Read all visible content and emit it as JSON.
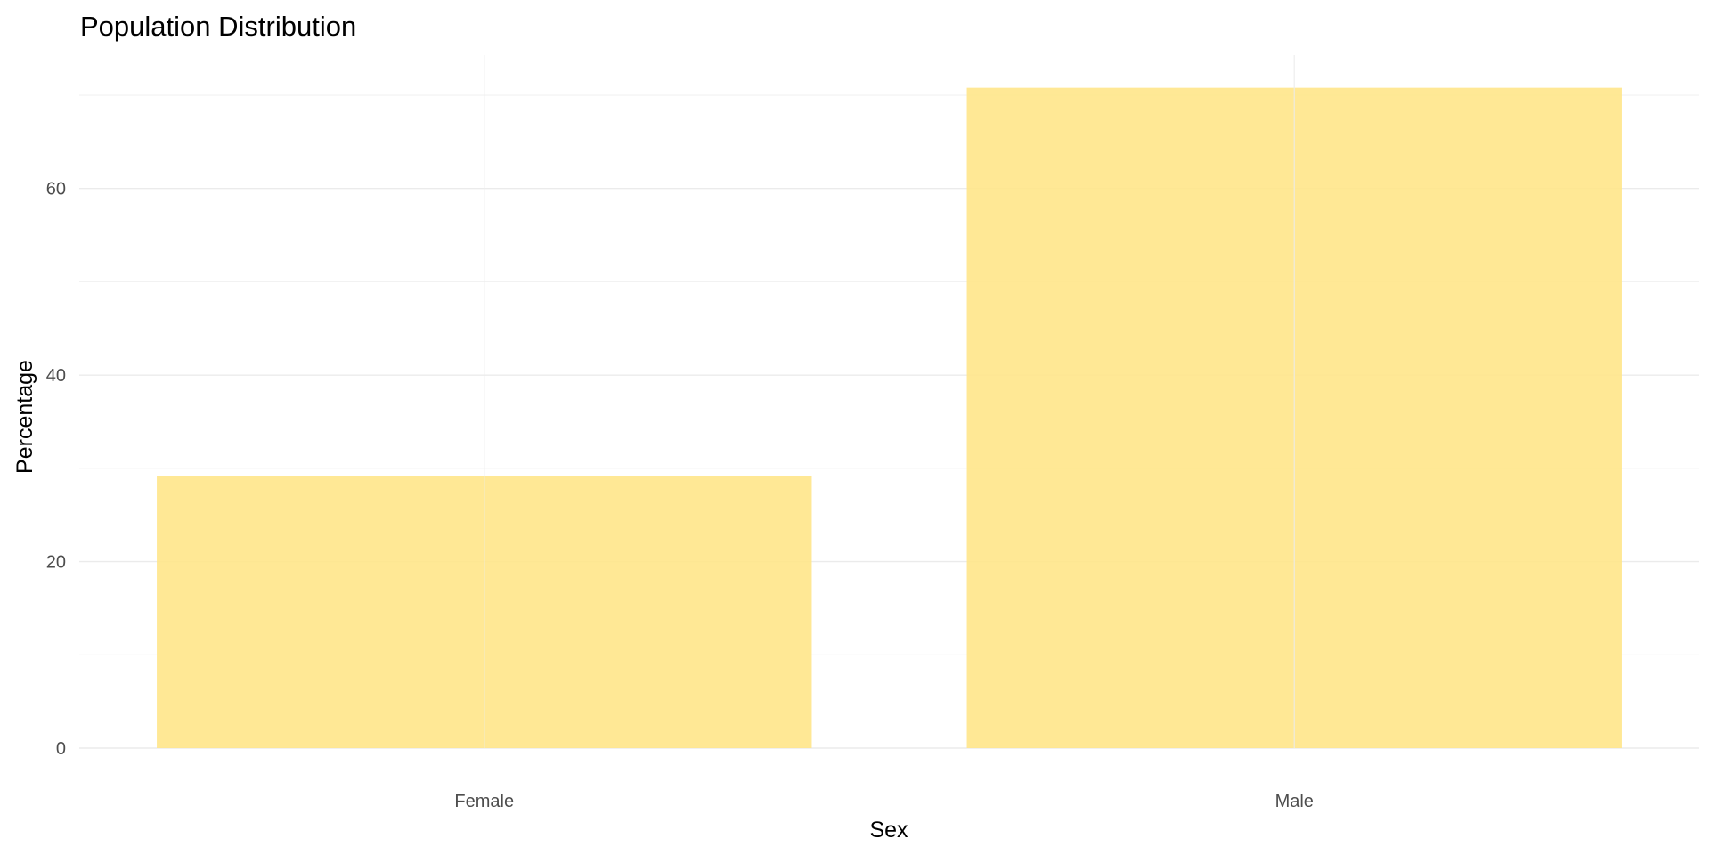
{
  "chart_data": {
    "type": "bar",
    "title": "Population Distribution",
    "xlabel": "Sex",
    "ylabel": "Percentage",
    "categories": [
      "Female",
      "Male"
    ],
    "values": [
      29.2,
      70.8
    ],
    "ylim": [
      0,
      74.3
    ],
    "yticks": [
      0,
      20,
      40,
      60
    ],
    "yticks_minor": [
      10,
      30,
      50,
      70
    ],
    "bar_color": "#ffe58a",
    "grid": true,
    "legend": "none"
  }
}
